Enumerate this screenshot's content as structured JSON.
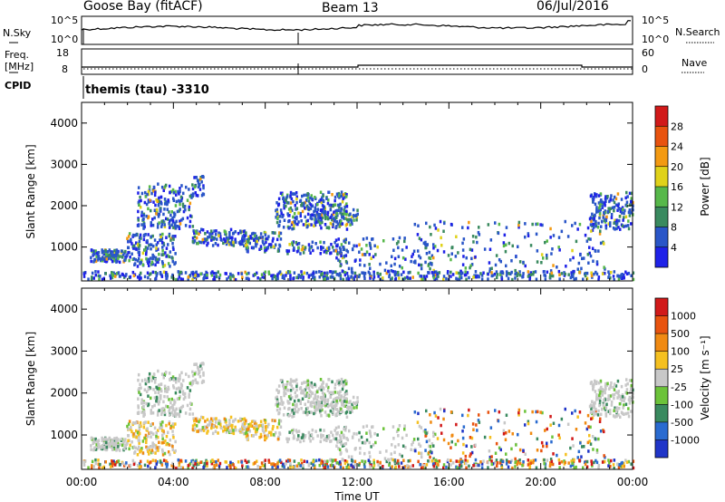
{
  "header": {
    "station": "Goose Bay (fitACF)",
    "beam": "Beam 13",
    "date": "06/Jul/2016"
  },
  "sidebar_left": {
    "nsky": "N.Sky",
    "freq_line1": "Freq.",
    "freq_line2": "[MHz]",
    "cpid": "CPID"
  },
  "sidebar_right": {
    "nsearch": "N.Search",
    "nave": "Nave"
  },
  "noise_panel": {
    "left_top": "10^5",
    "left_bottom": "10^0",
    "right_top": "10^5",
    "right_bottom": "10^0"
  },
  "freq_panel": {
    "left_top": "18",
    "left_bottom": "8",
    "right_top": "60",
    "right_bottom": "0"
  },
  "cpid_text": "themis (tau) -3310",
  "chart_data": [
    {
      "type": "heatmap",
      "title": "Power",
      "ylabel": "Slant Range [km]",
      "xlabel": "Time UT",
      "ylim": [
        180,
        4500
      ],
      "x_ticks": [
        "00:00",
        "04:00",
        "08:00",
        "12:00",
        "16:00",
        "20:00",
        "00:00"
      ],
      "y_ticks": [
        "1000",
        "2000",
        "3000",
        "4000"
      ],
      "colorbar_label": "Power [dB]",
      "colorbar_ticks": [
        "4",
        "8",
        "12",
        "16",
        "20",
        "24",
        "28"
      ],
      "colorbar_colors": [
        "#1f22e8",
        "#2a56c8",
        "#3a8a5f",
        "#57b84a",
        "#e0d21a",
        "#f39a12",
        "#e8530f",
        "#d11a1a"
      ]
    },
    {
      "type": "heatmap",
      "title": "Velocity",
      "ylabel": "Slant Range [km]",
      "xlabel": "Time UT",
      "ylim": [
        180,
        4500
      ],
      "x_ticks": [
        "00:00",
        "04:00",
        "08:00",
        "12:00",
        "16:00",
        "20:00",
        "00:00"
      ],
      "y_ticks": [
        "1000",
        "2000",
        "3000",
        "4000"
      ],
      "colorbar_label": "Velocity [m s⁻¹]",
      "colorbar_ticks": [
        "1000",
        "500",
        "100",
        "25",
        "-25",
        "-100",
        "-500",
        "-1000"
      ],
      "colorbar_colors": [
        "#2035c8",
        "#2a6bd0",
        "#3a8a5f",
        "#6cc33a",
        "#c8c8c8",
        "#f5c020",
        "#f08a12",
        "#e8530f",
        "#d11a1a"
      ]
    }
  ]
}
